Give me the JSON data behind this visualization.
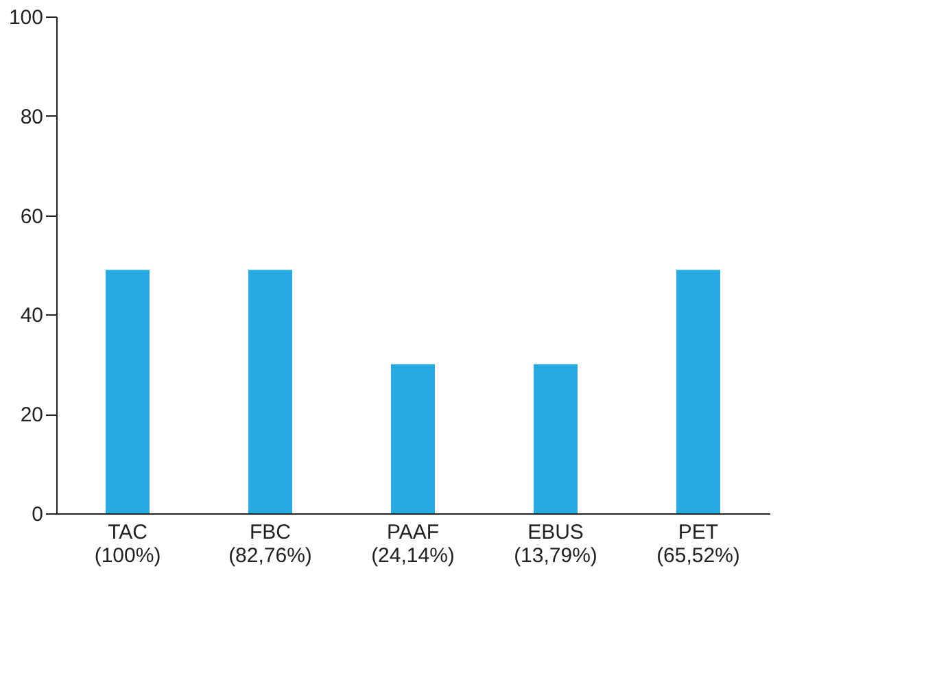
{
  "chart_data": {
    "type": "bar",
    "categories": [
      "TAC\n(100%)",
      "FBC\n(82,76%)",
      "PAAF\n(24,14%)",
      "EBUS\n(13,79%)",
      "PET\n(65,52%)"
    ],
    "values": [
      49,
      49,
      30,
      30,
      49
    ],
    "color": "#27aae1",
    "ylim": [
      0,
      100
    ],
    "yticks": [
      0,
      20,
      40,
      60,
      80,
      100
    ],
    "grid": false
  }
}
